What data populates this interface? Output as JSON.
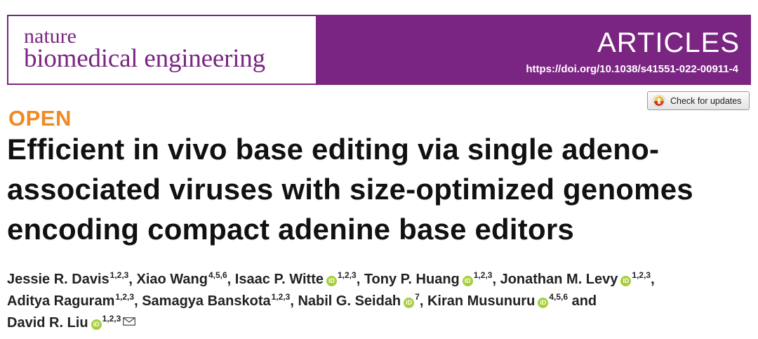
{
  "banner": {
    "journal_nature": "nature",
    "journal_name": "biomedical engineering",
    "section": "ARTICLES",
    "doi": "https://doi.org/10.1038/s41551-022-00911-4"
  },
  "check_updates": {
    "label": "Check for updates",
    "icon": "check-for-updates-icon"
  },
  "open_access_label": "OPEN",
  "title": "Efficient in vivo base editing via single adeno-associated viruses with size-optimized genomes encoding compact adenine base editors",
  "authors": [
    {
      "name": "Jessie R. Davis",
      "affil": "1,2,3",
      "sep": ", "
    },
    {
      "name": "Xiao Wang",
      "affil": "4,5,6",
      "sep": ", "
    },
    {
      "name": "Isaac P. Witte",
      "affil": "1,2,3",
      "sep": ", "
    },
    {
      "name": "Tony P. Huang",
      "affil": "1,2,3",
      "sep": ", "
    },
    {
      "name": "Jonathan M. Levy",
      "affil": "1,2,3",
      "sep": ","
    },
    {
      "name": "Aditya Raguram",
      "affil": "1,2,3",
      "sep": ", "
    },
    {
      "name": "Samagya Banskota",
      "affil": "1,2,3",
      "sep": ", "
    },
    {
      "name": "Nabil G. Seidah",
      "affil": "7",
      "sep": ", "
    },
    {
      "name": "Kiran Musunuru",
      "affil": "4,5,6",
      "sep": " and"
    },
    {
      "name": "David R. Liu",
      "affil": "1,2,3",
      "sep": ""
    }
  ],
  "icons": {
    "orcid_letters": "iD",
    "orcid_color": "#a6ce39",
    "mail": "mail-icon"
  },
  "colors": {
    "brand_purple": "#7a2582",
    "open_orange": "#f08a22"
  }
}
